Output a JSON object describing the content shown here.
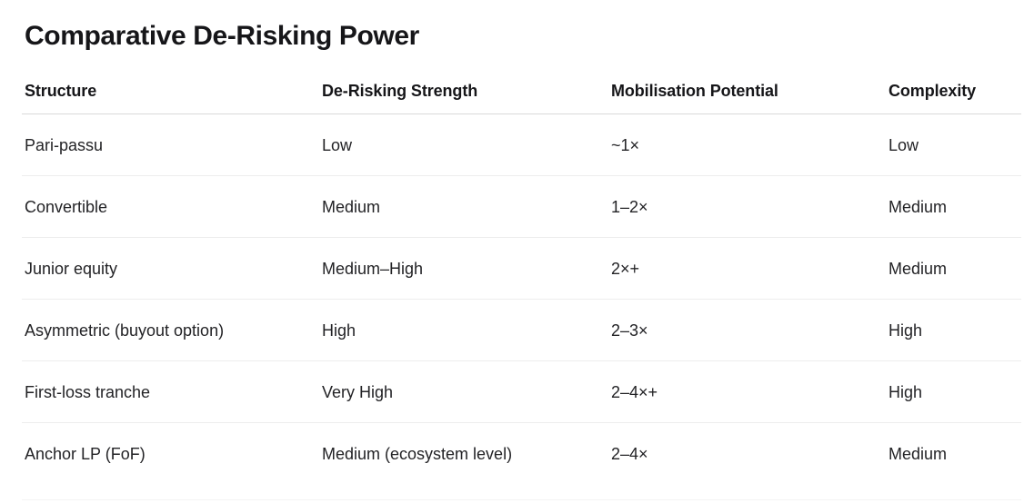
{
  "title": "Comparative De-Risking Power",
  "table": {
    "columns": {
      "structure": "Structure",
      "strength": "De-Risking Strength",
      "mobilisation": "Mobilisation Potential",
      "complexity": "Complexity"
    },
    "rows": [
      {
        "structure": "Pari-passu",
        "strength": "Low",
        "mobilisation": "~1×",
        "complexity": "Low"
      },
      {
        "structure": "Convertible",
        "strength": "Medium",
        "mobilisation": "1–2×",
        "complexity": "Medium"
      },
      {
        "structure": "Junior equity",
        "strength": "Medium–High",
        "mobilisation": "2×+",
        "complexity": "Medium"
      },
      {
        "structure": "Asymmetric (buyout option)",
        "strength": "High",
        "mobilisation": "2–3×",
        "complexity": "High"
      },
      {
        "structure": "First-loss tranche",
        "strength": "Very High",
        "mobilisation": "2–4×+",
        "complexity": "High"
      },
      {
        "structure": "Anchor LP (FoF)",
        "strength": "Medium (ecosystem level)",
        "mobilisation": "2–4×",
        "complexity": "Medium"
      }
    ]
  },
  "chart_data": {
    "type": "table",
    "title": "Comparative De-Risking Power",
    "columns": [
      "Structure",
      "De-Risking Strength",
      "Mobilisation Potential",
      "Complexity"
    ],
    "rows": [
      [
        "Pari-passu",
        "Low",
        "~1×",
        "Low"
      ],
      [
        "Convertible",
        "Medium",
        "1–2×",
        "Medium"
      ],
      [
        "Junior equity",
        "Medium–High",
        "2×+",
        "Medium"
      ],
      [
        "Asymmetric (buyout option)",
        "High",
        "2–3×",
        "High"
      ],
      [
        "First-loss tranche",
        "Very High",
        "2–4×+",
        "High"
      ],
      [
        "Anchor LP (FoF)",
        "Medium (ecosystem level)",
        "2–4×",
        "Medium"
      ]
    ],
    "layout": {
      "grid": "horizontal-row-separators",
      "legend": "none"
    }
  },
  "colors": {
    "background": "#ffffff",
    "title_text": "#161619",
    "body_text": "#232326",
    "header_separator": "#d9d9d9",
    "row_separator": "#ededed",
    "bottom_border": "#f4f4f4"
  }
}
